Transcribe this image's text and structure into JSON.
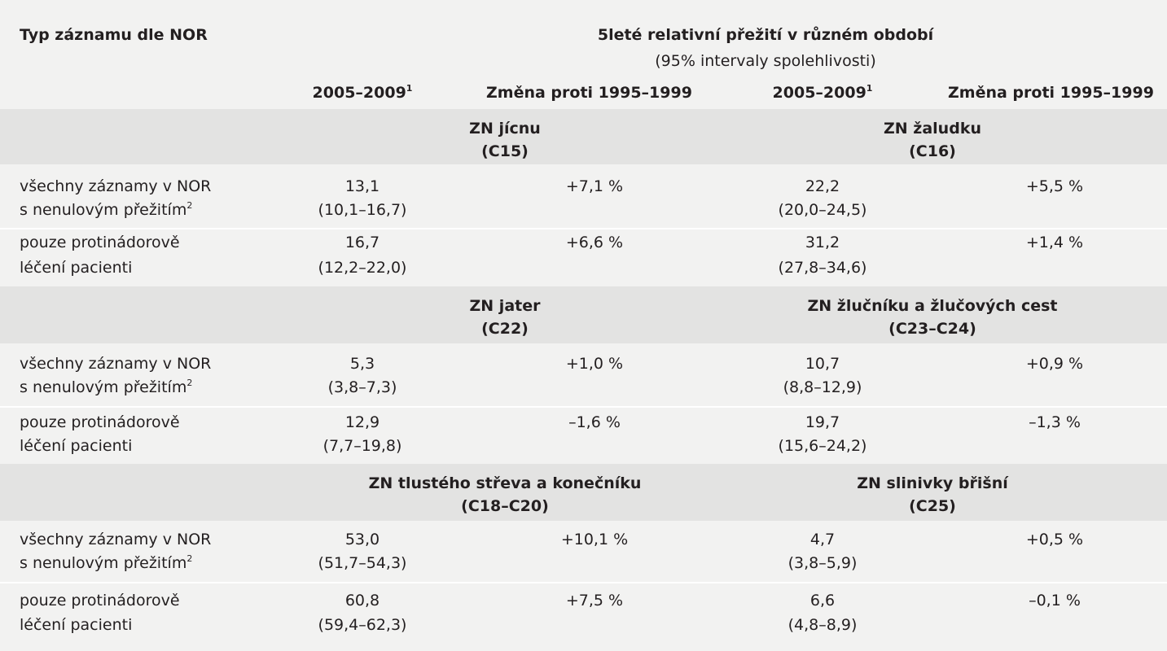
{
  "table": {
    "header": {
      "first_column": "Typ záznamu dle NOR",
      "title": "5leté relativní přežití v různém období",
      "subtitle": "(95% intervaly spolehlivosti)",
      "column_labels": [
        {
          "text": "2005–2009",
          "sup": "1"
        },
        {
          "text": "Změna proti 1995–1999"
        },
        {
          "text": "2005–2009",
          "sup": "1"
        },
        {
          "text": "Změna proti 1995–1999"
        }
      ]
    },
    "row_labels": {
      "all_line1": "všechny záznamy v NOR",
      "all_line2": "s nenulovým přežitím",
      "all_sup": "2",
      "treated_line1": "pouze protinádorově",
      "treated_line2": "léčení pacienti"
    },
    "sections": [
      {
        "left": {
          "name": "ZN jícnu",
          "code": "(C15)",
          "all": {
            "value": "13,1",
            "ci": "(10,1–16,7)",
            "change": "+7,1 %"
          },
          "treated": {
            "value": "16,7",
            "ci": "(12,2–22,0)",
            "change": "+6,6 %"
          }
        },
        "right": {
          "name": "ZN žaludku",
          "code": "(C16)",
          "all": {
            "value": "22,2",
            "ci": "(20,0–24,5)",
            "change": "+5,5 %"
          },
          "treated": {
            "value": "31,2",
            "ci": "(27,8–34,6)",
            "change": "+1,4 %"
          }
        }
      },
      {
        "left": {
          "name": "ZN jater",
          "code": "(C22)",
          "all": {
            "value": "5,3",
            "ci": "(3,8–7,3)",
            "change": "+1,0 %"
          },
          "treated": {
            "value": "12,9",
            "ci": "(7,7–19,8)",
            "change": "–1,6 %"
          }
        },
        "right": {
          "name": "ZN žlučníku a žlučových cest",
          "code": "(C23–C24)",
          "all": {
            "value": "10,7",
            "ci": "(8,8–12,9)",
            "change": "+0,9 %"
          },
          "treated": {
            "value": "19,7",
            "ci": "(15,6–24,2)",
            "change": "–1,3 %"
          }
        }
      },
      {
        "left": {
          "name": "ZN tlustého střeva a konečníku",
          "code": "(C18–C20)",
          "all": {
            "value": "53,0",
            "ci": "(51,7–54,3)",
            "change": "+10,1 %"
          },
          "treated": {
            "value": "60,8",
            "ci": "(59,4–62,3)",
            "change": "+7,5 %"
          }
        },
        "right": {
          "name": "ZN slinivky břišní",
          "code": "(C25)",
          "all": {
            "value": "4,7",
            "ci": "(3,8–5,9)",
            "change": "+0,5 %"
          },
          "treated": {
            "value": "6,6",
            "ci": "(4,8–8,9)",
            "change": "–0,1 %"
          }
        }
      }
    ]
  }
}
